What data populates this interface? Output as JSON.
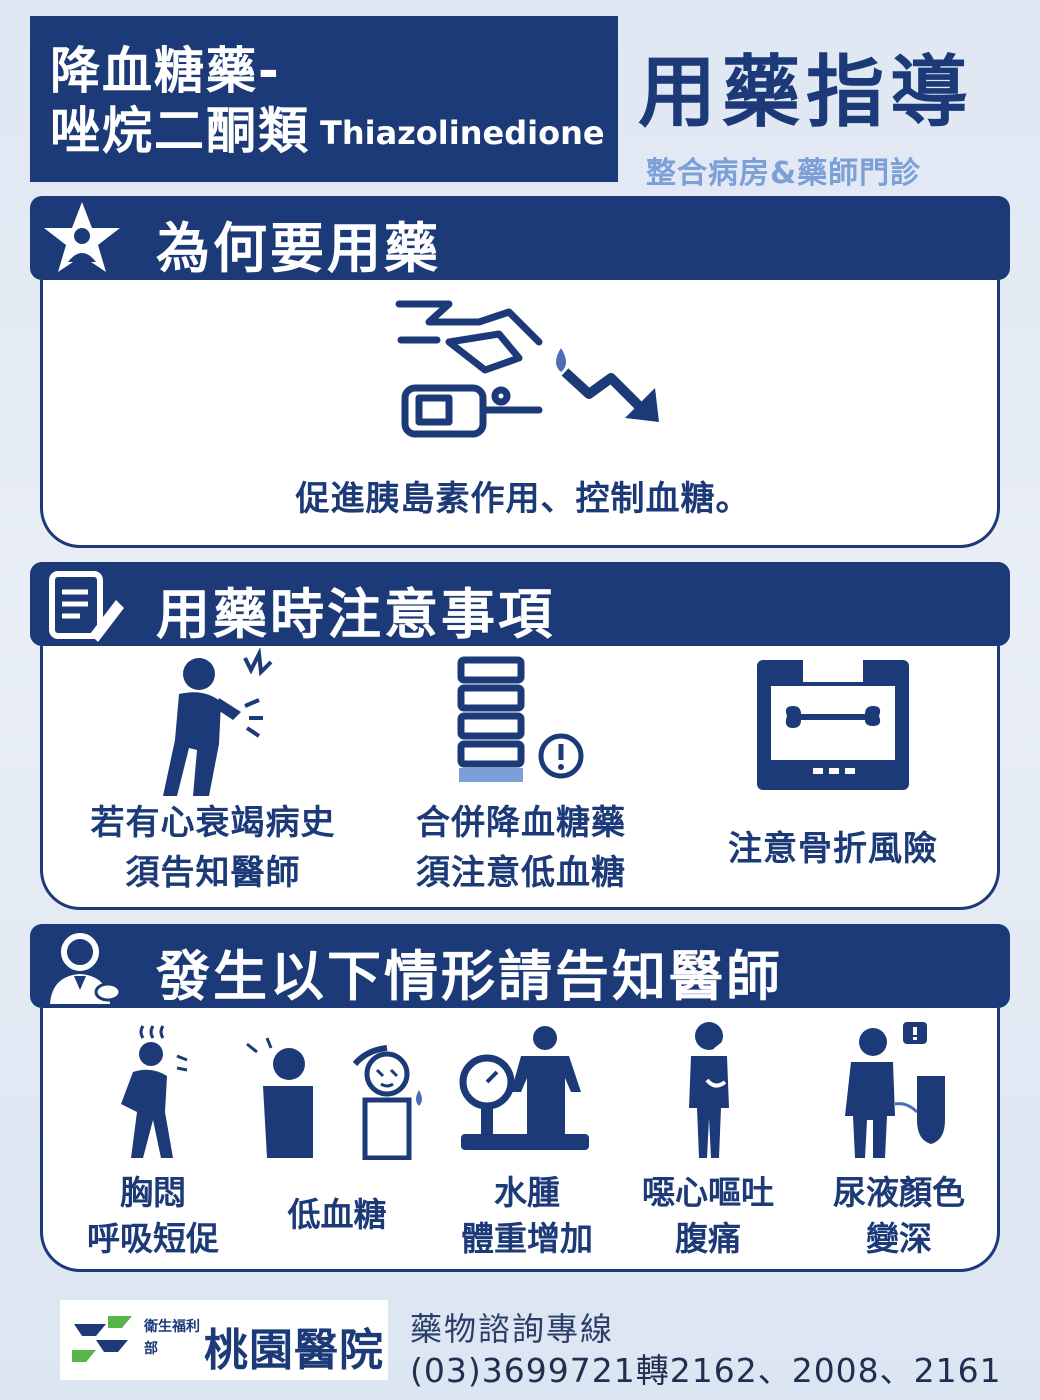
{
  "header": {
    "title_line1": "降血糖藥-",
    "title_line2": "唑烷二酮類",
    "title_en": "Thiazolinedione",
    "headline": "用藥指導",
    "subheadline": "整合病房&藥師門診"
  },
  "sections": {
    "why": {
      "title": "為何要用藥",
      "icon": "star-person-icon",
      "caption": "促進胰島素作用、控制血糖。"
    },
    "precautions": {
      "title": "用藥時注意事項",
      "icon": "notepad-pencil-icon",
      "items": [
        {
          "line1": "若有心衰竭病史",
          "line2": "須告知醫師",
          "icon": "chest-pain-person-icon"
        },
        {
          "line1": "合併降血糖藥",
          "line2": "須注意低血糖",
          "icon": "stacked-bars-warning-icon"
        },
        {
          "line1": "注意骨折風險",
          "line2": "",
          "icon": "xray-bone-icon"
        }
      ]
    },
    "tell_doctor": {
      "title": "發生以下情形請告知醫師",
      "icon": "doctor-icon",
      "items": [
        {
          "line1": "胸悶",
          "line2": "呼吸短促",
          "icon": "breathless-person-icon"
        },
        {
          "line1": "低血糖",
          "line2": "",
          "icon": "dizzy-person-icon"
        },
        {
          "line1": "水腫",
          "line2": "體重增加",
          "icon": "scale-person-icon"
        },
        {
          "line1": "噁心嘔吐",
          "line2": "腹痛",
          "icon": "nausea-person-icon"
        },
        {
          "line1": "尿液顏色",
          "line2": "變深",
          "icon": "urinal-person-icon"
        }
      ]
    }
  },
  "footer": {
    "org_small": "衛生福利部",
    "org_name": "桃園醫院",
    "hotline_label": "藥物諮詢專線",
    "hotline_number": "(03)3699721轉2162、2008、2161"
  },
  "colors": {
    "navy": "#1c3a78",
    "light_blue": "#7d9fd8",
    "logo_green": "#56b64a"
  }
}
